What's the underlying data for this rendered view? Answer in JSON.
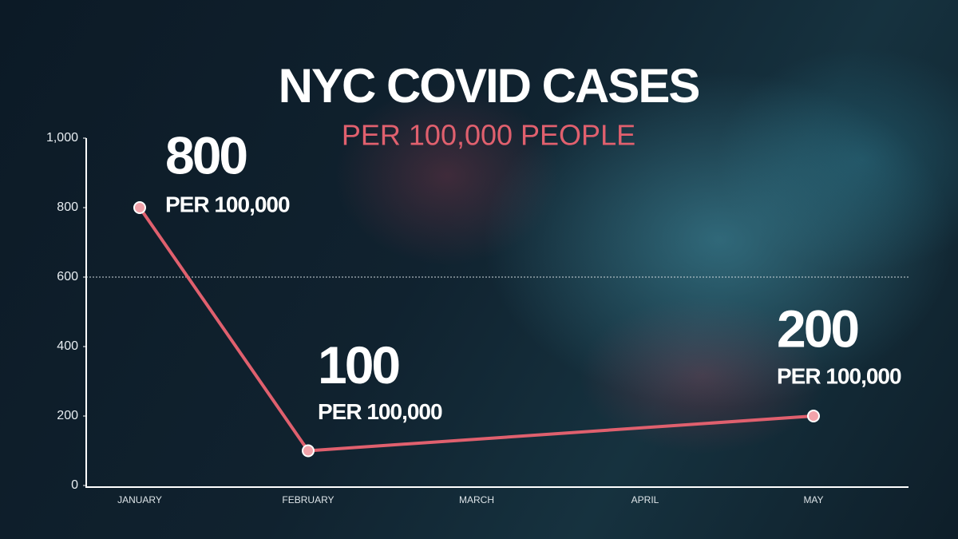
{
  "chart_data": {
    "type": "line",
    "title": "NYC COVID CASES",
    "subtitle": "PER 100,000 PEOPLE",
    "categories": [
      "JANUARY",
      "FEBRUARY",
      "MARCH",
      "APRIL",
      "MAY"
    ],
    "values": [
      800,
      100,
      null,
      null,
      200
    ],
    "annotation": "PER 100,000",
    "color": "#e0606e",
    "ylim": [
      0,
      1000
    ],
    "yticks": [
      0,
      200,
      400,
      600,
      800,
      {
        "value": 1000,
        "label": "1,000"
      }
    ],
    "reference_line": 600
  }
}
